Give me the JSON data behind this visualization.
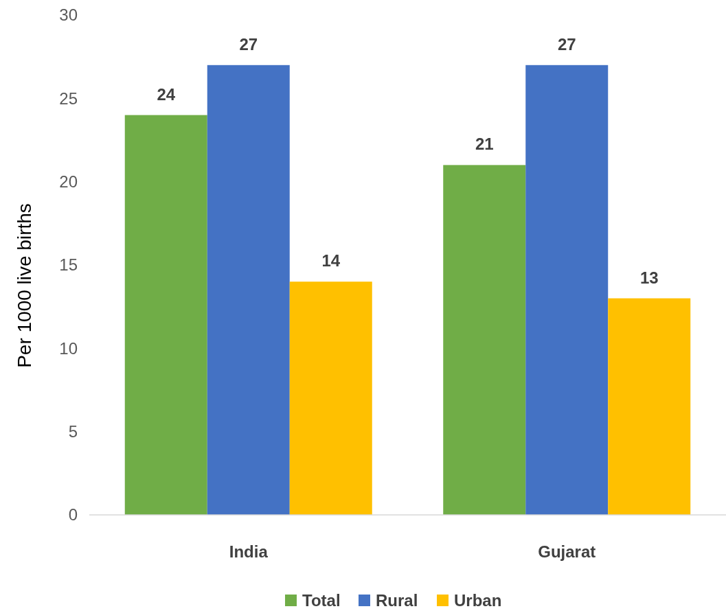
{
  "chart_data": {
    "type": "bar",
    "ylabel": "Per 1000 live births",
    "categories": [
      "India",
      "Gujarat"
    ],
    "series": [
      {
        "name": "Total",
        "color": "#70ad47",
        "values": [
          24,
          21
        ]
      },
      {
        "name": "Rural",
        "color": "#4472c4",
        "values": [
          27,
          27
        ]
      },
      {
        "name": "Urban",
        "color": "#ffc000",
        "values": [
          14,
          13
        ]
      }
    ],
    "ylim": [
      0,
      30
    ],
    "yticks": [
      0,
      5,
      10,
      15,
      20,
      25,
      30
    ],
    "data_labels": true,
    "legend": "bottom",
    "grid": false
  }
}
